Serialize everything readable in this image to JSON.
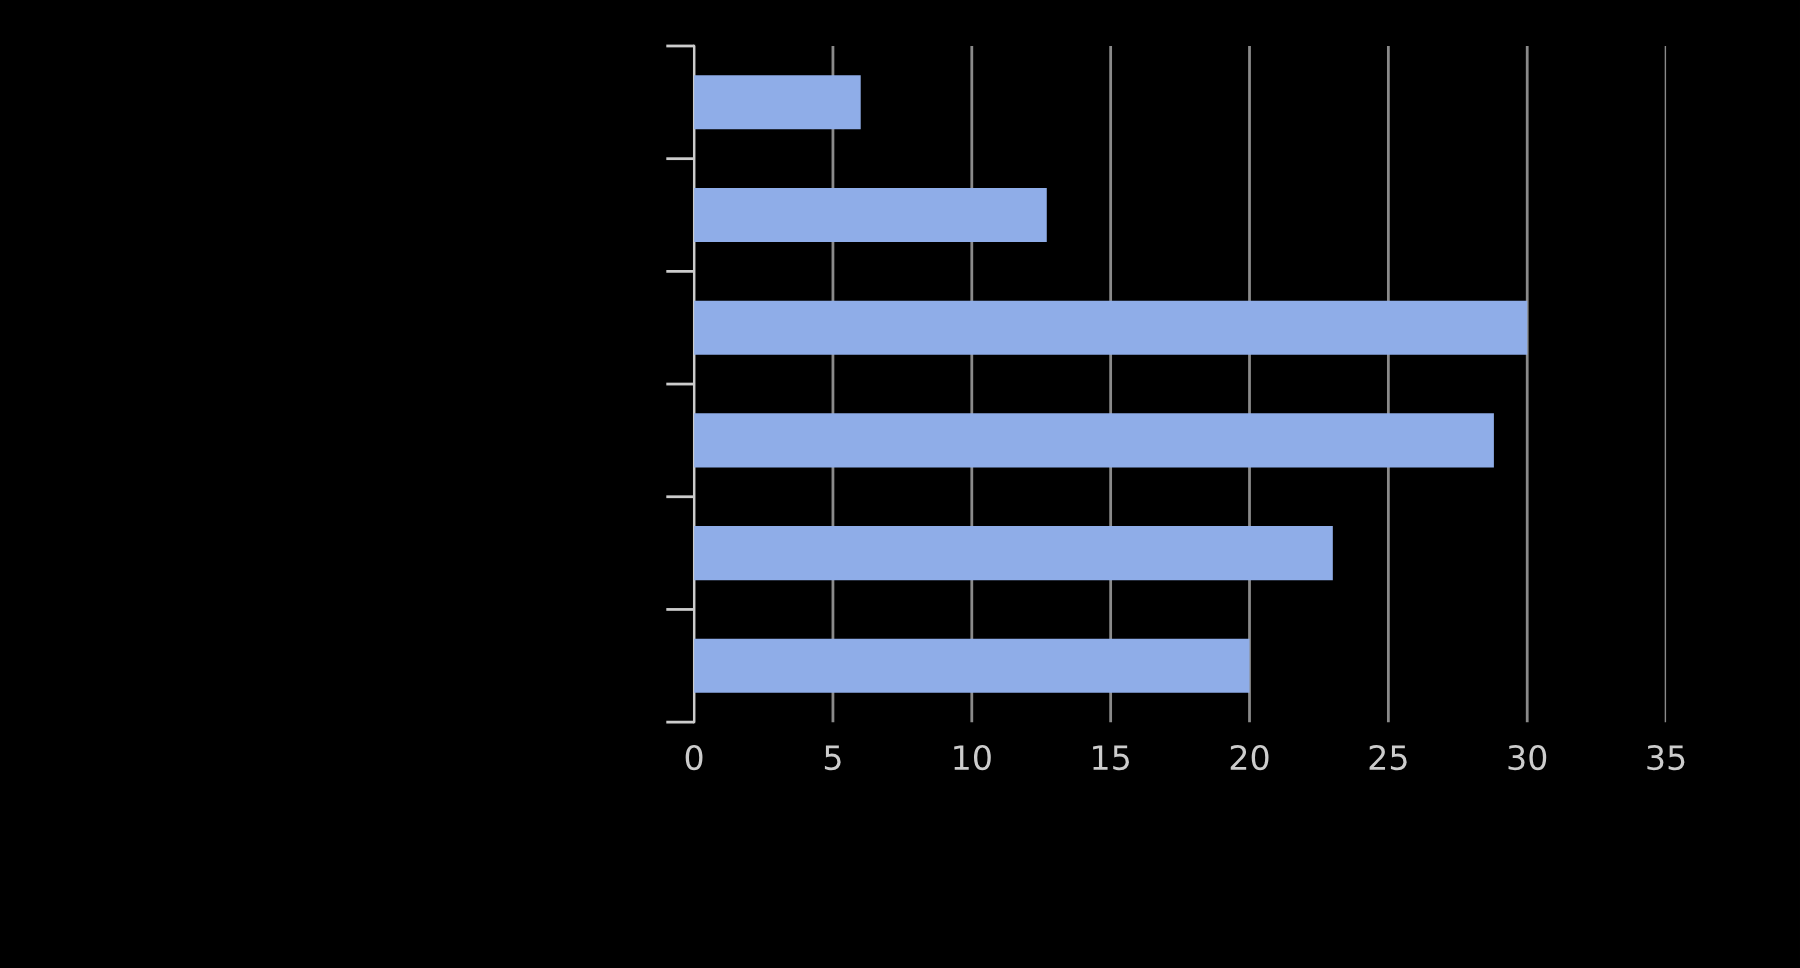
{
  "chart_data": {
    "type": "bar",
    "orientation": "horizontal",
    "categories": [
      null,
      null,
      null,
      null,
      null,
      null
    ],
    "values": [
      6,
      12.7,
      30,
      28.8,
      23,
      20
    ],
    "color": "#8fade8",
    "xlim": [
      0,
      35
    ],
    "xticks": [
      0,
      5,
      10,
      15,
      20,
      25,
      30,
      35
    ],
    "grid": "x",
    "legend": false
  }
}
